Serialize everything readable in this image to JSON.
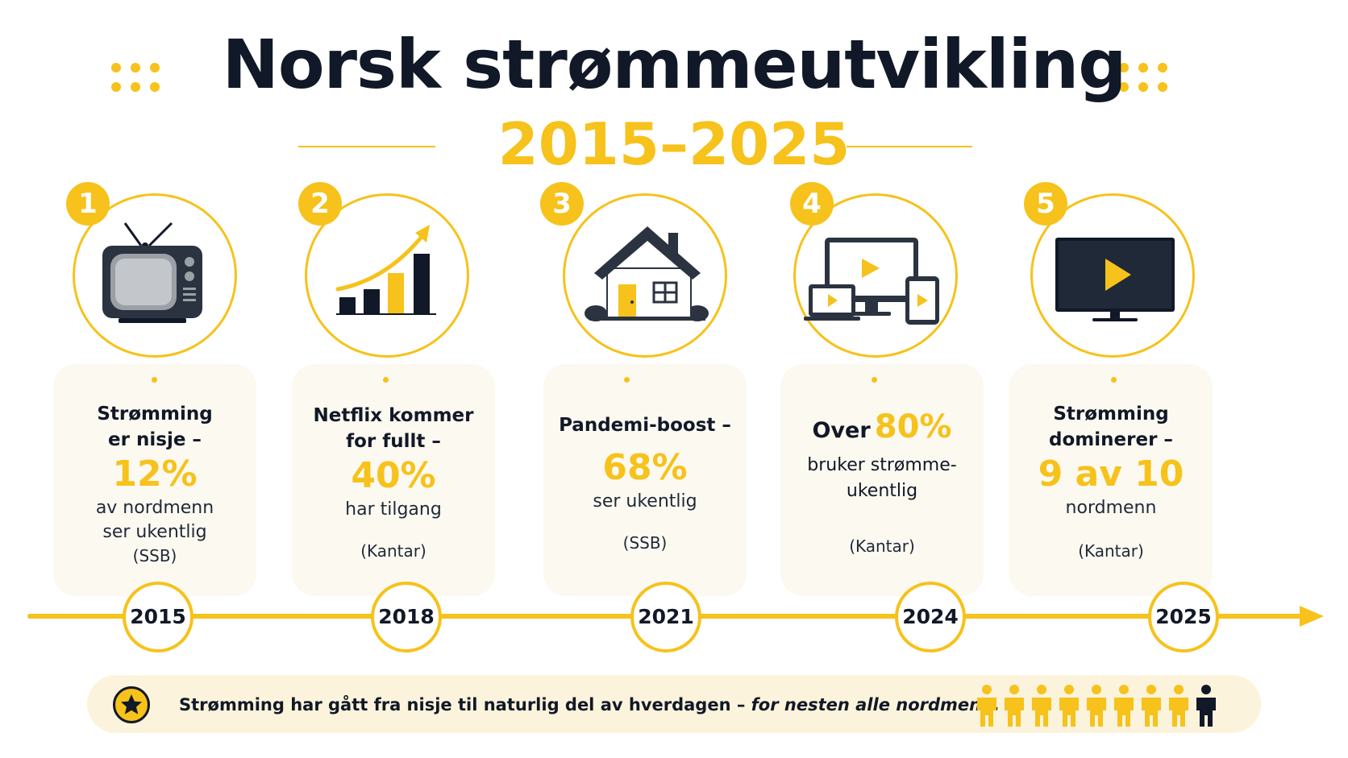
{
  "header": {
    "title": "Norsk strømmeutvikling",
    "subtitle": "2015–2025"
  },
  "colors": {
    "accent": "#F6C21B",
    "dark": "#111827",
    "card_bg": "#FCF9F1",
    "footer_bg": "#FBF3DB"
  },
  "milestones": [
    {
      "number": "1",
      "icon": "retro-tv-icon",
      "line1": "Strømming",
      "line2": "er nisje –",
      "highlight": "12%",
      "desc1": "av nordmenn",
      "desc2": "ser ukentlig",
      "source": "(SSB)",
      "year": "2015"
    },
    {
      "number": "2",
      "icon": "growth-chart-icon",
      "line1": "Netflix kommer",
      "line2": "for fullt –",
      "highlight": "40%",
      "desc1": "har tilgang",
      "source": "(Kantar)",
      "year": "2018"
    },
    {
      "number": "3",
      "icon": "house-icon",
      "line1": "Pandemi-boost –",
      "highlight": "68%",
      "desc1": "ser ukentlig",
      "source": "(SSB)",
      "year": "2021"
    },
    {
      "number": "4",
      "icon": "devices-icon",
      "prefix": "Over",
      "highlight": "80%",
      "desc1": "bruker strømme-",
      "desc2": "ukentlig",
      "source": "(Kantar)",
      "year": "2024"
    },
    {
      "number": "5",
      "icon": "flat-tv-icon",
      "line1": "Strømming",
      "line2": "dominerer –",
      "highlight": "9 av 10",
      "desc1": "nordmenn",
      "source": "(Kantar)",
      "year": "2025"
    }
  ],
  "footer": {
    "icon": "star-icon",
    "text": "Strømming har gått fra nisje til naturlig del av hverdagen –",
    "italic": "for nesten alle nordmenn.",
    "people_icon": "person-icon",
    "people_total": 9,
    "people_highlighted": 8
  }
}
